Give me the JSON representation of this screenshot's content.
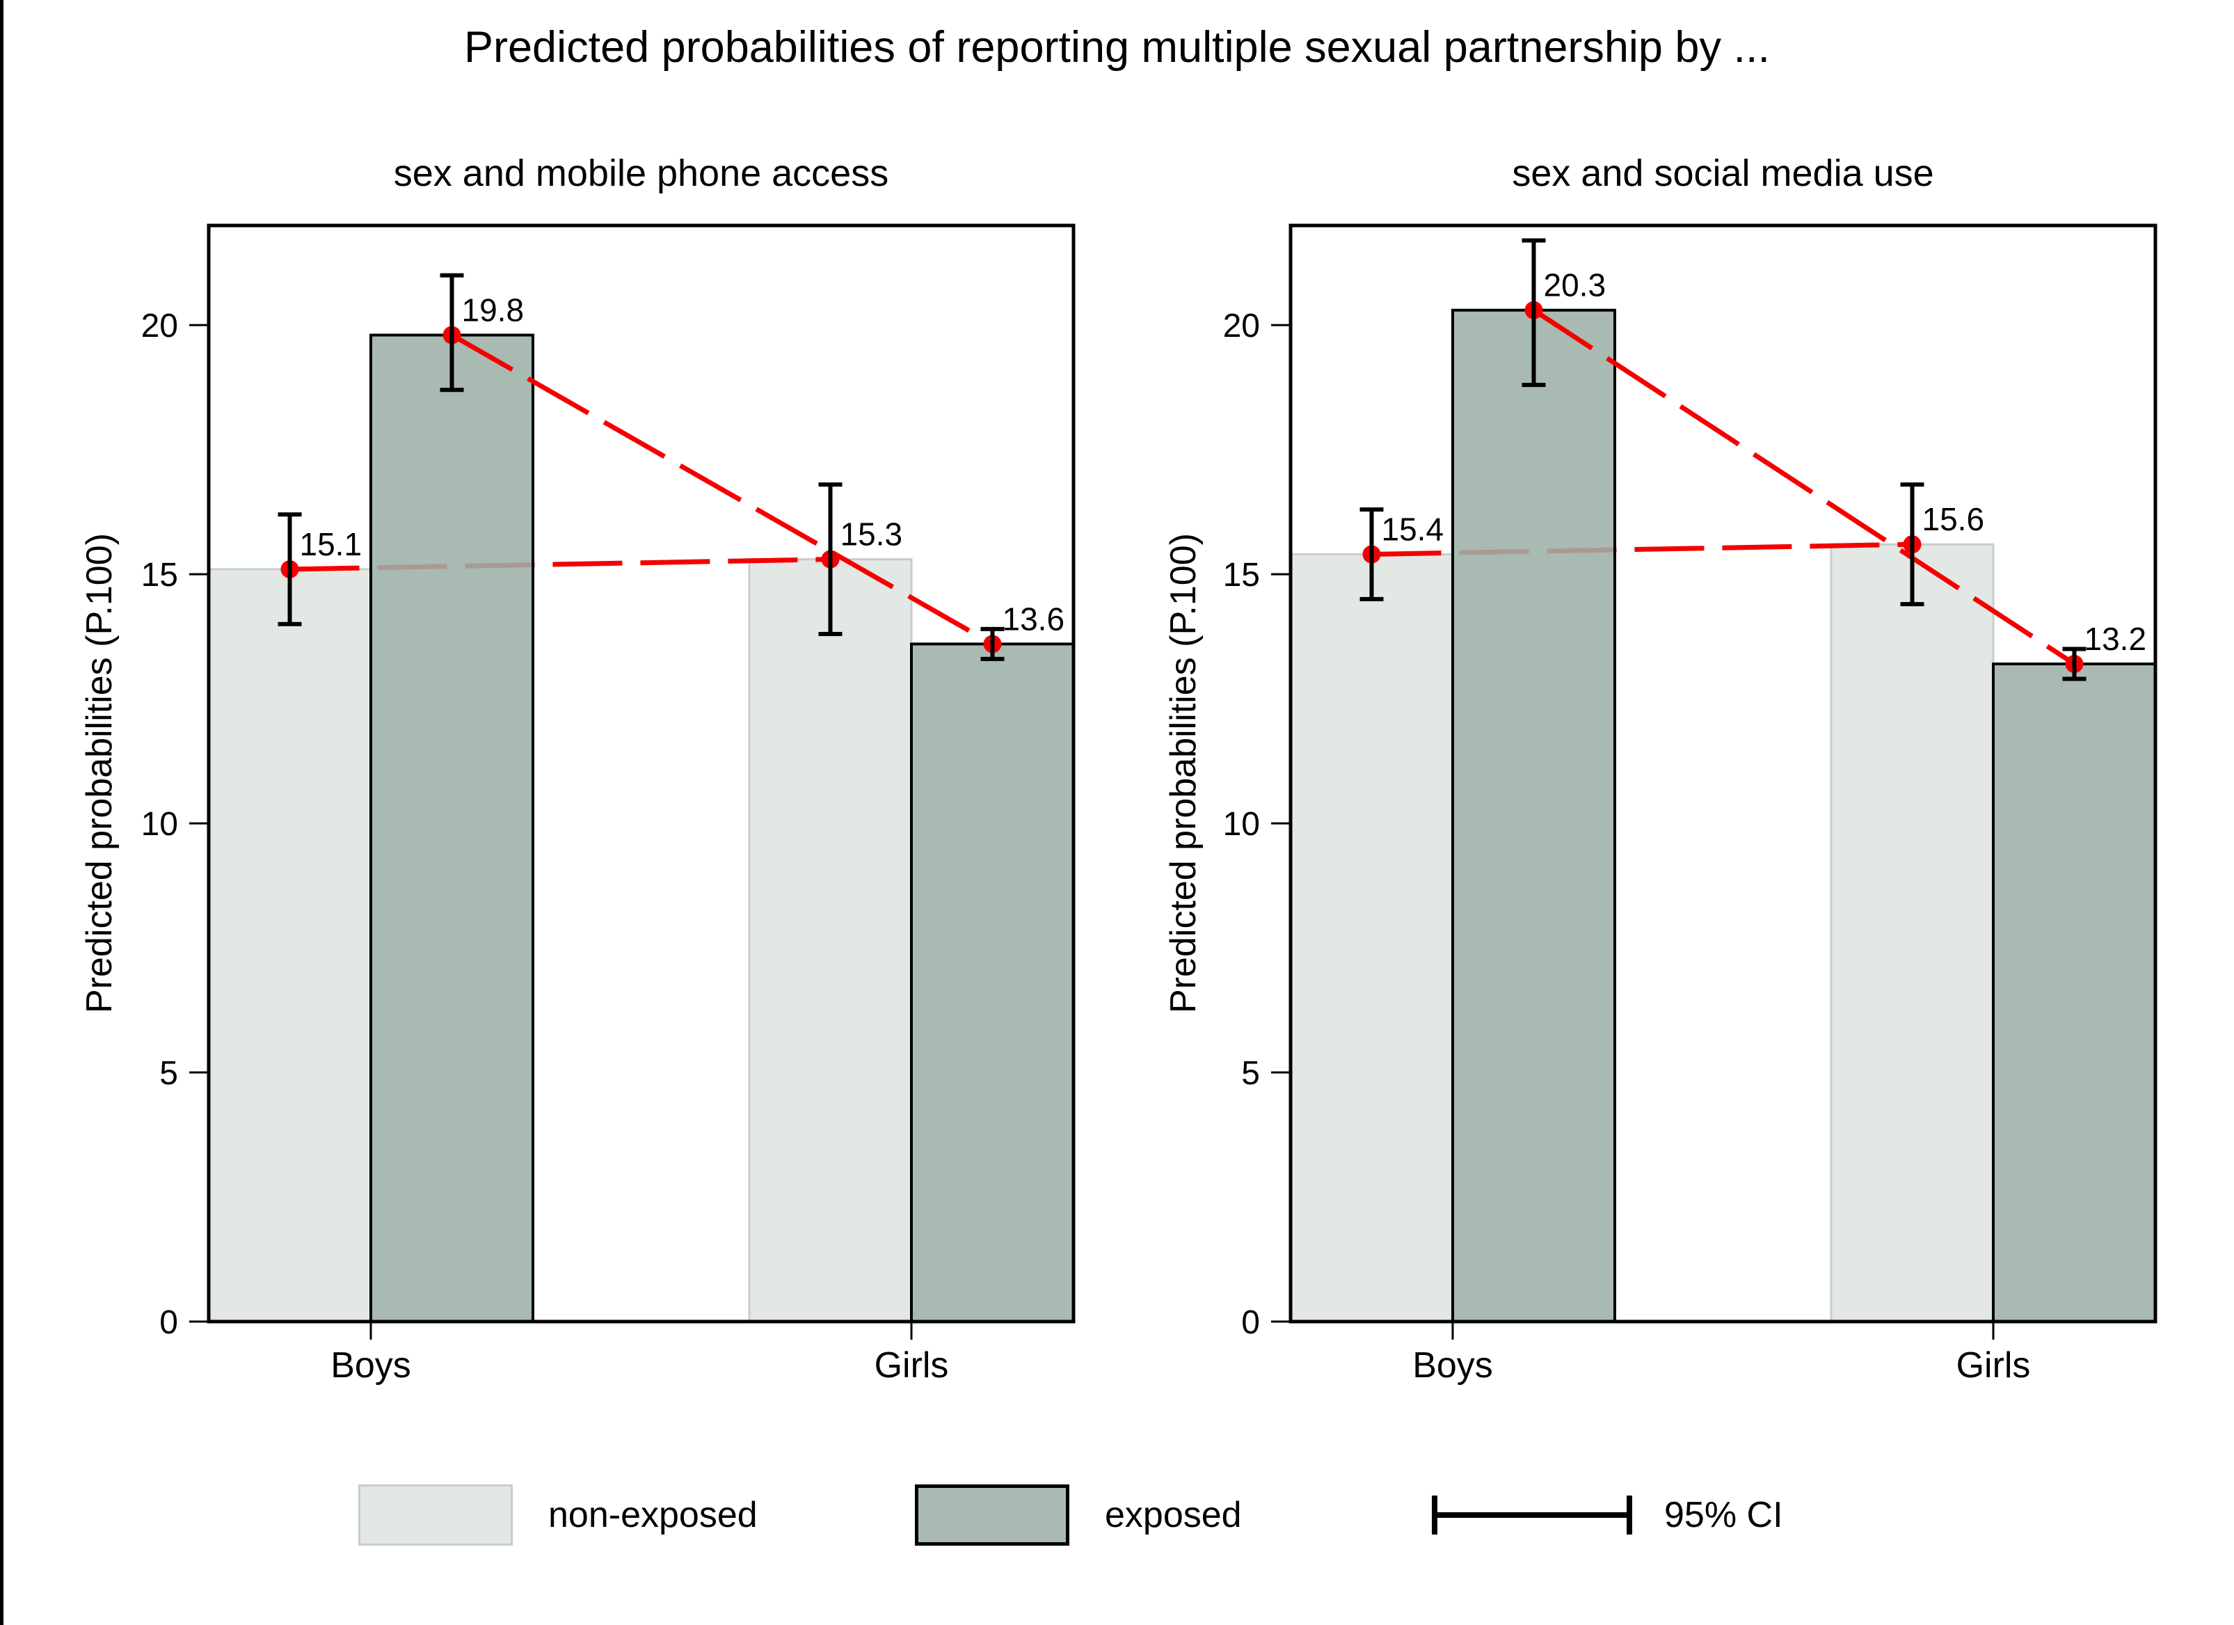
{
  "title": "Predicted probabilities of reporting multiple sexual partnership by ...",
  "colors": {
    "non_exposed_fill": "#e3e8e5",
    "non_exposed_border": "#c6cfca",
    "exposed_fill": "#a9bab2",
    "exposed_fill_base": "#9db1a8",
    "exposed_border": "#000000",
    "error_bar": "#000000",
    "axis": "#000000",
    "line": "#f40000",
    "marker": "#f40000"
  },
  "legend": {
    "items": [
      {
        "label": "non-exposed",
        "swatch": "light-bar"
      },
      {
        "label": "exposed",
        "swatch": "dark-bar"
      },
      {
        "label": "95% CI",
        "swatch": "error-bar-glyph"
      }
    ]
  },
  "chart_data": [
    {
      "type": "bar",
      "title": "sex and mobile phone access",
      "categories": [
        "Boys",
        "Girls"
      ],
      "xlabel": "",
      "ylabel": "Predicted probabilities (P.100)",
      "ylim": [
        0,
        22
      ],
      "yticks": [
        0,
        5,
        10,
        15,
        20
      ],
      "grid": false,
      "legend_position": "bottom",
      "series": [
        {
          "name": "non-exposed",
          "values": [
            15.1,
            15.3
          ],
          "ci_low": [
            14.0,
            13.8
          ],
          "ci_high": [
            16.2,
            16.8
          ],
          "labels": [
            "15.1",
            "15.3"
          ]
        },
        {
          "name": "exposed",
          "values": [
            19.8,
            13.6
          ],
          "ci_low": [
            18.7,
            13.3
          ],
          "ci_high": [
            21.0,
            13.9
          ],
          "labels": [
            "19.8",
            "13.6"
          ]
        }
      ]
    },
    {
      "type": "bar",
      "title": "sex and social media use",
      "categories": [
        "Boys",
        "Girls"
      ],
      "xlabel": "",
      "ylabel": "Predicted probabilities (P.100)",
      "ylim": [
        0,
        22
      ],
      "yticks": [
        0,
        5,
        10,
        15,
        20
      ],
      "grid": false,
      "legend_position": "bottom",
      "series": [
        {
          "name": "non-exposed",
          "values": [
            15.4,
            15.6
          ],
          "ci_low": [
            14.5,
            14.4
          ],
          "ci_high": [
            16.3,
            16.8
          ],
          "labels": [
            "15.4",
            "15.6"
          ]
        },
        {
          "name": "exposed",
          "values": [
            20.3,
            13.2
          ],
          "ci_low": [
            18.8,
            12.9
          ],
          "ci_high": [
            21.7,
            13.5
          ],
          "labels": [
            "20.3",
            "13.2"
          ]
        }
      ]
    }
  ]
}
